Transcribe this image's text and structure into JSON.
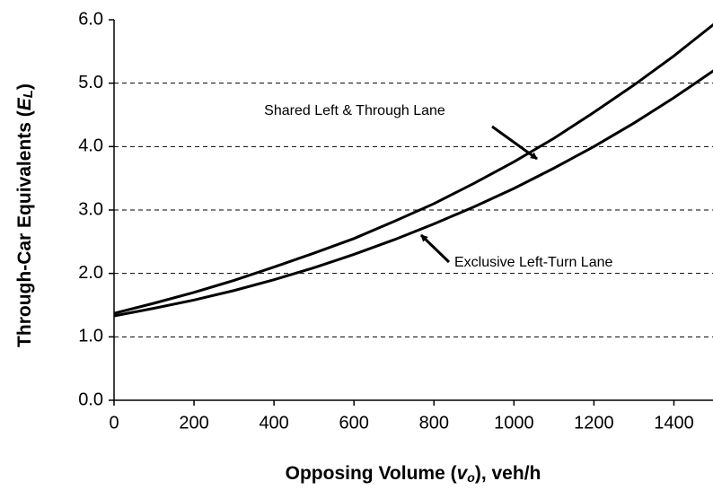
{
  "chart_data": {
    "type": "line",
    "x_label": [
      "Opposing Volume (",
      "v",
      "o",
      "), veh/h"
    ],
    "y_label": [
      "Through-Car Equivalents (",
      "E",
      "L",
      ")"
    ],
    "x": [
      0,
      100,
      200,
      300,
      400,
      500,
      600,
      700,
      800,
      900,
      1000,
      1100,
      1200,
      1300,
      1400,
      1500
    ],
    "series": [
      {
        "name": "Shared Left & Through Lane",
        "color": "#000000",
        "values": [
          1.37,
          1.53,
          1.7,
          1.89,
          2.1,
          2.32,
          2.55,
          2.82,
          3.1,
          3.42,
          3.76,
          4.13,
          4.54,
          4.97,
          5.43,
          5.93
        ]
      },
      {
        "name": "Exclusive Left-Turn Lane",
        "color": "#000000",
        "values": [
          1.33,
          1.45,
          1.58,
          1.73,
          1.9,
          2.09,
          2.3,
          2.53,
          2.78,
          3.05,
          3.34,
          3.66,
          4.0,
          4.37,
          4.77,
          5.2
        ]
      }
    ],
    "xlim": [
      0,
      1500
    ],
    "xticks": [
      0,
      200,
      400,
      600,
      800,
      1000,
      1200,
      1400
    ],
    "ylim": [
      0,
      6
    ],
    "yticks": [
      {
        "value": 0,
        "label": "0.0"
      },
      {
        "value": 1,
        "label": "1.0"
      },
      {
        "value": 2,
        "label": "2.0"
      },
      {
        "value": 3,
        "label": "3.0"
      },
      {
        "value": 4,
        "label": "4.0"
      },
      {
        "value": 5,
        "label": "5.0"
      },
      {
        "value": 6,
        "label": "6.0"
      }
    ],
    "grid": true
  }
}
